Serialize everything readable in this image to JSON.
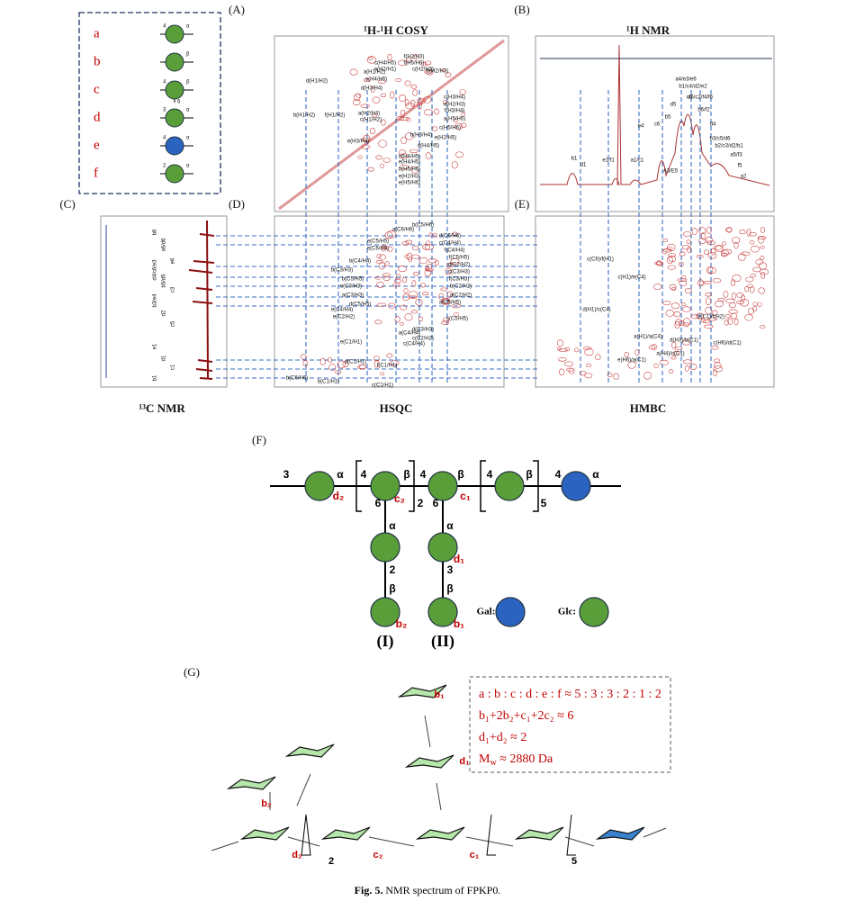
{
  "panels": [
    "(A)",
    "(B)",
    "(C)",
    "(D)",
    "(E)",
    "(F)",
    "(G)"
  ],
  "titles": {
    "cosy": "¹H-¹H COSY",
    "h_nmr": "¹H NMR",
    "c_nmr": "¹³C NMR",
    "hsqc": "HSQC",
    "hmbc": "HMBC"
  },
  "legend_a": [
    {
      "letter": "a",
      "left": "4",
      "right": "α",
      "below": null
    },
    {
      "letter": "b",
      "left": null,
      "right": "β",
      "below": null
    },
    {
      "letter": "c",
      "left": "4",
      "right": "β",
      "below": "6"
    },
    {
      "letter": "d",
      "left": "3",
      "right": "α",
      "below": null
    },
    {
      "letter": "e",
      "left": "4",
      "right": "α",
      "below": null
    },
    {
      "letter": "f",
      "left": "2",
      "right": "α",
      "below": null
    }
  ],
  "h_nmr_peaks": [
    "b1",
    "d1",
    "e1/f1",
    "a1/c1",
    "A3/E5",
    "e4",
    "c6",
    "b5",
    "d5",
    "a4/e3/e6",
    "b1/c4/d2/e2",
    "c5",
    "a6/c2/f4/f6",
    "b6/f2",
    "d4",
    "b3/c5/d6",
    "b2/c3/d2/b1",
    "a5/f3",
    "f5",
    "a2"
  ],
  "cosy_peaks": [
    "d(H1/H2)",
    "b(H1/H2)",
    "f(H1/H2)",
    "a(H1/H2)",
    "c(H4/H5)",
    "e(H2/H1)",
    "f(H2/H3)",
    "f(H5/H6)",
    "c(H2/H3)",
    "b(H2/H3)",
    "a(H4/H6)",
    "d(H3/H4)",
    "c(H3/H4)",
    "d(H2/H3)",
    "f(H3/H4)",
    "a(H5/H6)",
    "a(H2/H4)",
    "c(H1/H2)",
    "e(H3/H4)",
    "c(H5/H6)",
    "e(H2/H5)",
    "b(H3/H4)",
    "b(H5/H6)",
    "e(H4/H5)",
    "b(H4/H5)",
    "e(H2/H3)",
    "e(H5/H6)",
    "d(H4/H5)"
  ],
  "hsqc_peaks": [
    "b(C5/H6)",
    "a(C6/H6)",
    "d(C6/H6)",
    "e(C5/H5)",
    "e(C6/H6)",
    "c(C4/H4)",
    "f(C4/H4)",
    "b(C4/H4)",
    "f(C5/H5)",
    "d(C2/H2)",
    "c(C3/H3)",
    "f(C3/H3)",
    "b(C3/H3)",
    "b(C5/H5)",
    "b(C2/H2)",
    "a(C2/H2)",
    "e(C3/H3)",
    "a(C3/H3)",
    "d(C5/H5)",
    "e(C4/H4)",
    "e(C2/H2)",
    "a(C5/H5)",
    "c(C5/H5)",
    "d(C3/H3)",
    "c(C2/H2)",
    "a(C4/H4)",
    "c(C4/H4)",
    "e(C1/H1)",
    "d(C1/H1)",
    "f(C1/H1)",
    "b(C6/H6)",
    "b(C1/H1)",
    "c(C1/H1)"
  ],
  "hmbc_peaks": [
    "c(C6)/f(H1)",
    "c(H1)/e(C4)",
    "d(H1)/c(C4)",
    "b(C1)/f(H2)",
    "d(H3)/b(C1)",
    "c(H6)/d(C1)",
    "a(H1)/a(C4)",
    "a(H4)/c(C1)",
    "e(H6)/a(C1)"
  ],
  "c_nmr_peaks": [
    "b6",
    "a6/d6",
    "e6",
    "d4/c6/e3",
    "b5/d5",
    "c3",
    "b3/e4",
    "d2",
    "c5",
    "e1",
    "d1",
    "c1",
    "b1"
  ],
  "structure_f": {
    "labels": [
      "3",
      "α",
      "d₂",
      "4",
      "β",
      "c₂",
      "6",
      "2",
      "4",
      "β",
      "c₁",
      "6",
      "4",
      "β",
      "5",
      "4",
      "α",
      "α",
      "2",
      "β",
      "b₂",
      "α",
      "3",
      "d₁",
      "β",
      "b₁"
    ],
    "gal": "Gal:",
    "glc": "Glc:",
    "branch_1": "(I)",
    "branch_2": "(II)"
  },
  "structure_g": {
    "labels": [
      "b₁",
      "d₁",
      "b₂",
      "d₂",
      "c₂",
      "c₁",
      "2",
      "5"
    ],
    "ratios": [
      "a : b : c : d : e : f ≈ 5 : 3 : 3 : 2 : 1 : 2",
      "b₁+2b₂+c₁+2c₂ ≈ 6",
      "d₁+d₂ ≈ 2"
    ],
    "mw": {
      "symbol": "M",
      "subscript": "w",
      "text": " ≈ 2880 Da"
    }
  },
  "caption": {
    "label": "Fig. 5.",
    "text": " NMR spectrum of FPKP0."
  }
}
